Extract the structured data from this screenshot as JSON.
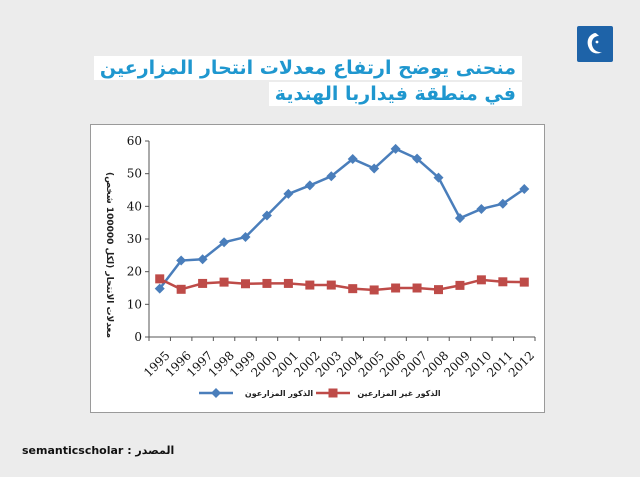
{
  "title": {
    "line1": "منحنى يوضح ارتفاع معدلات انتحار المزارعين",
    "line2": "في منطقة فيداربا الهندية"
  },
  "logo_icon": "aljazeera-logo-icon",
  "source": {
    "label": "المصدر :",
    "value": "semanticscholar"
  },
  "chart_data": {
    "type": "line",
    "title": "",
    "xlabel": "",
    "ylabel": "معدلات الانتحار (لكل 100000 شخص)",
    "ylim": [
      0,
      60
    ],
    "yticks": [
      0,
      10,
      20,
      30,
      40,
      50,
      60
    ],
    "categories": [
      "1995",
      "1996",
      "1997",
      "1998",
      "1999",
      "2000",
      "2001",
      "2002",
      "2003",
      "2004",
      "2005",
      "2006",
      "2007",
      "2008",
      "2009",
      "2010",
      "2011",
      "2012"
    ],
    "series": [
      {
        "name": "الذكور المزارعون",
        "color": "#4a7ebb",
        "marker": "diamond",
        "values": [
          14.8,
          23.4,
          23.8,
          29.0,
          30.6,
          37.2,
          43.8,
          46.4,
          49.2,
          54.5,
          51.6,
          57.6,
          54.6,
          48.8,
          36.4,
          39.2,
          40.8,
          45.3
        ]
      },
      {
        "name": "الذكور غير المزارعين",
        "color": "#be4b48",
        "marker": "square",
        "values": [
          17.8,
          14.6,
          16.4,
          16.8,
          16.3,
          16.4,
          16.4,
          15.9,
          15.9,
          14.8,
          14.4,
          15.0,
          15.0,
          14.5,
          15.8,
          17.5,
          16.9,
          16.8
        ]
      }
    ],
    "legend": "bottom",
    "grid": false
  }
}
